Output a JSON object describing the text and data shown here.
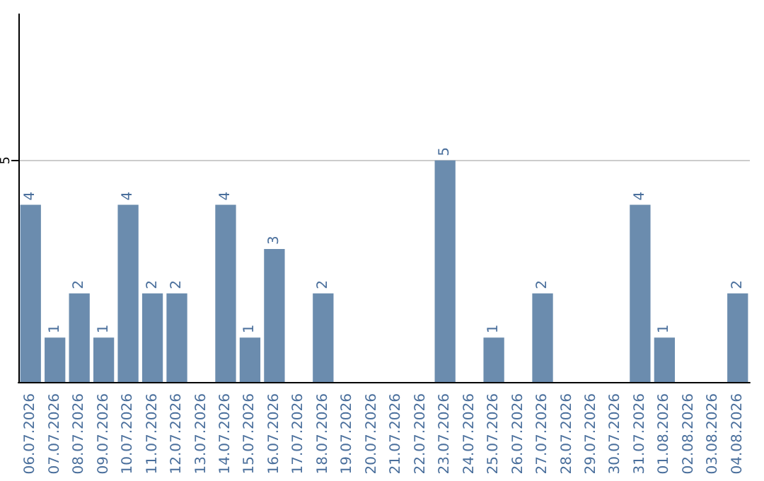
{
  "chart_data": {
    "type": "bar",
    "categories": [
      "06.07.2026",
      "07.07.2026",
      "08.07.2026",
      "09.07.2026",
      "10.07.2026",
      "11.07.2026",
      "12.07.2026",
      "13.07.2026",
      "14.07.2026",
      "15.07.2026",
      "16.07.2026",
      "17.07.2026",
      "18.07.2026",
      "19.07.2026",
      "20.07.2026",
      "21.07.2026",
      "22.07.2026",
      "23.07.2026",
      "24.07.2026",
      "25.07.2026",
      "26.07.2026",
      "27.07.2026",
      "28.07.2026",
      "29.07.2026",
      "30.07.2026",
      "31.07.2026",
      "01.08.2026",
      "02.08.2026",
      "03.08.2026",
      "04.08.2026"
    ],
    "values": [
      4,
      1,
      2,
      1,
      4,
      2,
      2,
      0,
      4,
      1,
      3,
      0,
      2,
      0,
      0,
      0,
      0,
      5,
      0,
      1,
      0,
      2,
      0,
      0,
      0,
      4,
      1,
      0,
      0,
      2
    ],
    "value_labels": [
      "4",
      "1",
      "2",
      "1",
      "4",
      "2",
      "2",
      null,
      "4",
      "1",
      "3",
      null,
      "2",
      null,
      null,
      null,
      null,
      "5",
      null,
      "1",
      null,
      "2",
      null,
      null,
      null,
      "4",
      "1",
      null,
      null,
      "2"
    ],
    "color": "#6b8cae",
    "ylim": [
      0,
      8.3
    ],
    "yticks": [
      5
    ],
    "grid": "y"
  }
}
